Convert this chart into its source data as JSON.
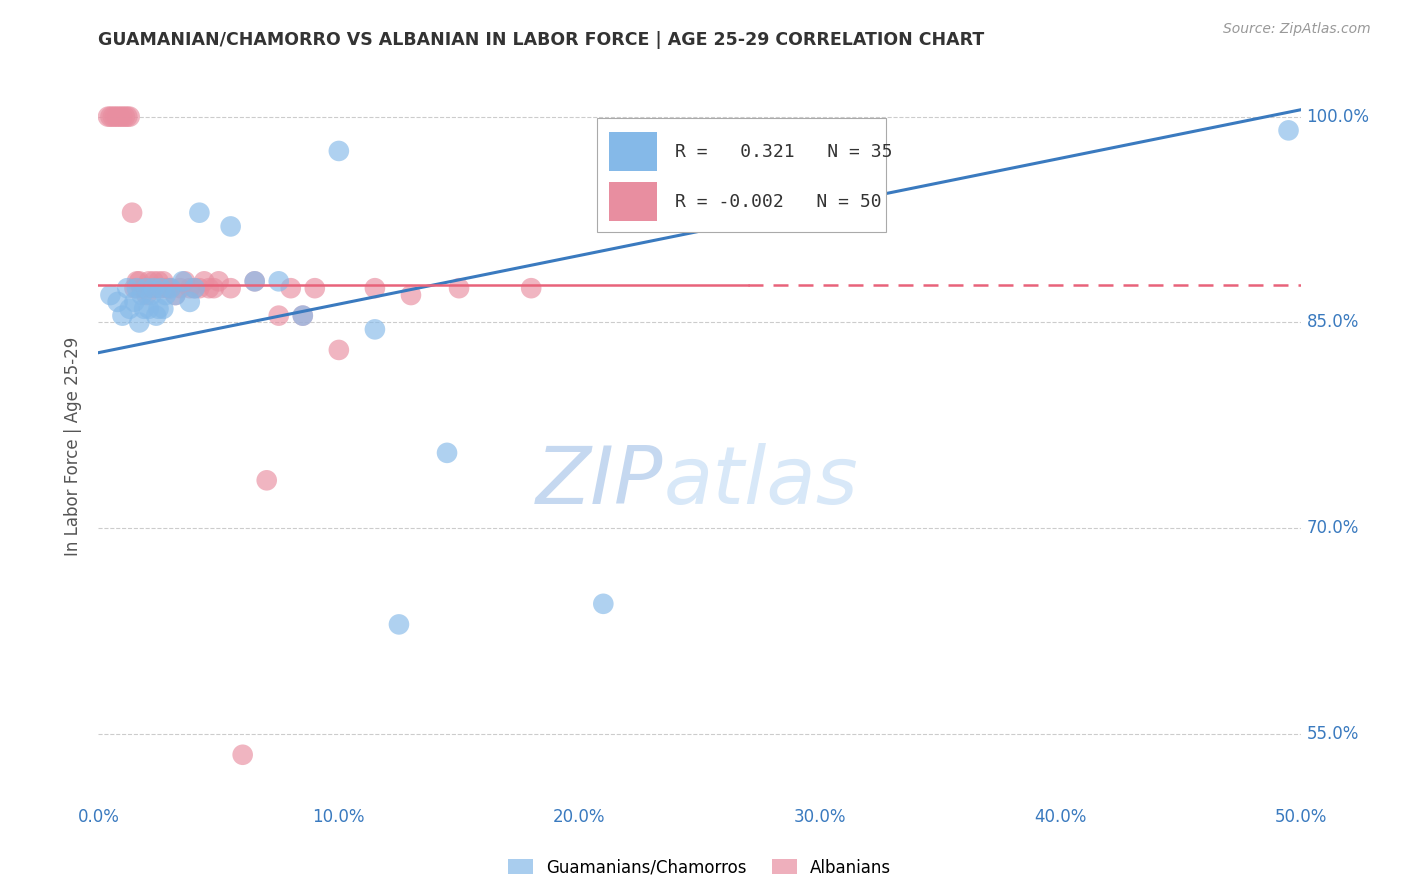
{
  "title": "GUAMANIAN/CHAMORRO VS ALBANIAN IN LABOR FORCE | AGE 25-29 CORRELATION CHART",
  "source": "Source: ZipAtlas.com",
  "ylabel": "In Labor Force | Age 25-29",
  "xlim": [
    0.0,
    0.5
  ],
  "ylim": [
    0.5,
    1.02
  ],
  "ytick_vals": [
    0.55,
    0.7,
    0.85,
    1.0
  ],
  "ytick_labels": [
    "55.0%",
    "70.0%",
    "85.0%",
    "100.0%"
  ],
  "xtick_labels": [
    "0.0%",
    "10.0%",
    "20.0%",
    "30.0%",
    "40.0%",
    "50.0%"
  ],
  "blue_R": 0.321,
  "blue_N": 35,
  "pink_R": -0.002,
  "pink_N": 50,
  "blue_color": "#85b9e8",
  "pink_color": "#e88ea0",
  "blue_line_color": "#3a7abf",
  "pink_line_color": "#e8637a",
  "grid_color": "#cccccc",
  "watermark_zip_color": "#c8d8f0",
  "watermark_atlas_color": "#d8e8f8",
  "blue_x": [
    0.005,
    0.008,
    0.01,
    0.012,
    0.013,
    0.015,
    0.016,
    0.017,
    0.018,
    0.019,
    0.02,
    0.021,
    0.022,
    0.023,
    0.024,
    0.025,
    0.026,
    0.027,
    0.028,
    0.03,
    0.032,
    0.035,
    0.038,
    0.04,
    0.042,
    0.055,
    0.065,
    0.075,
    0.085,
    0.1,
    0.115,
    0.125,
    0.145,
    0.21,
    0.495
  ],
  "blue_y": [
    0.87,
    0.865,
    0.855,
    0.875,
    0.86,
    0.865,
    0.875,
    0.85,
    0.87,
    0.86,
    0.875,
    0.86,
    0.87,
    0.875,
    0.855,
    0.86,
    0.875,
    0.86,
    0.87,
    0.875,
    0.87,
    0.88,
    0.865,
    0.875,
    0.93,
    0.92,
    0.88,
    0.88,
    0.855,
    0.975,
    0.845,
    0.63,
    0.755,
    0.645,
    0.99
  ],
  "pink_x": [
    0.004,
    0.005,
    0.006,
    0.007,
    0.008,
    0.009,
    0.01,
    0.011,
    0.012,
    0.013,
    0.014,
    0.015,
    0.016,
    0.017,
    0.018,
    0.019,
    0.02,
    0.021,
    0.022,
    0.023,
    0.024,
    0.025,
    0.026,
    0.027,
    0.028,
    0.029,
    0.03,
    0.032,
    0.034,
    0.036,
    0.038,
    0.04,
    0.042,
    0.044,
    0.046,
    0.048,
    0.05,
    0.055,
    0.06,
    0.065,
    0.07,
    0.075,
    0.08,
    0.085,
    0.09,
    0.1,
    0.115,
    0.13,
    0.15,
    0.18
  ],
  "pink_y": [
    1.0,
    1.0,
    1.0,
    1.0,
    1.0,
    1.0,
    1.0,
    1.0,
    1.0,
    1.0,
    0.93,
    0.875,
    0.88,
    0.88,
    0.875,
    0.875,
    0.87,
    0.88,
    0.875,
    0.88,
    0.875,
    0.88,
    0.875,
    0.88,
    0.875,
    0.875,
    0.875,
    0.87,
    0.875,
    0.88,
    0.875,
    0.875,
    0.875,
    0.88,
    0.875,
    0.875,
    0.88,
    0.875,
    0.535,
    0.88,
    0.735,
    0.855,
    0.875,
    0.855,
    0.875,
    0.83,
    0.875,
    0.87,
    0.875,
    0.875
  ]
}
